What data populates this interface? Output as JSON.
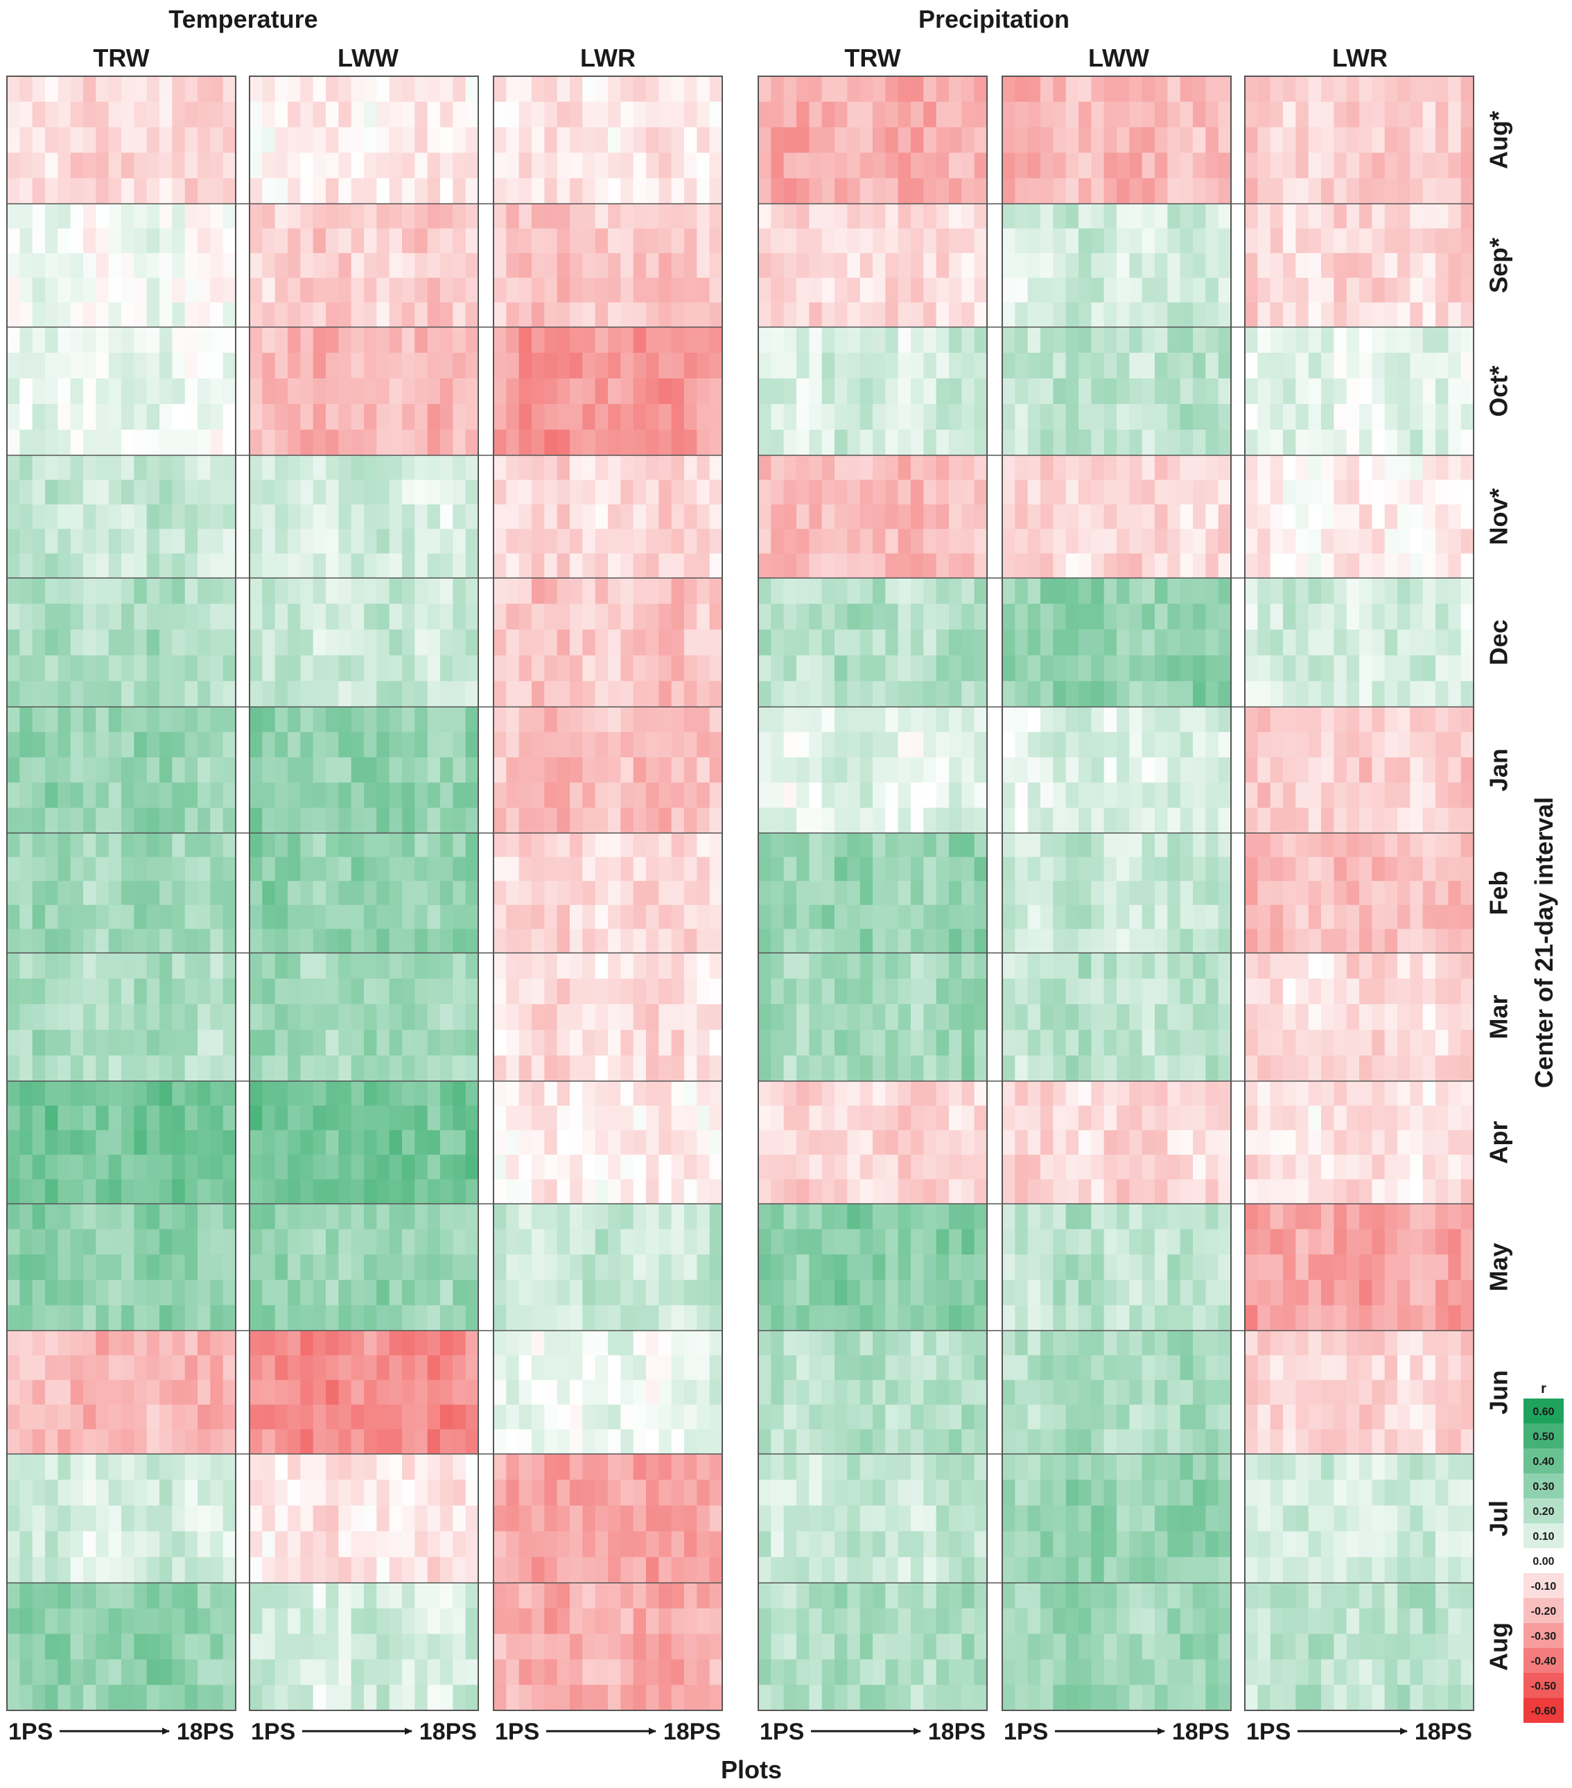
{
  "chart_data": {
    "type": "heatmap",
    "groups": [
      {
        "title": "Temperature",
        "variables": [
          "TRW",
          "LWW",
          "LWR"
        ]
      },
      {
        "title": "Precipitation",
        "variables": [
          "TRW",
          "LWW",
          "LWR"
        ]
      }
    ],
    "x_start_label": "1PS",
    "x_end_label": "18PS",
    "xlabel": "Plots",
    "ylabel": "Center of 21-day interval",
    "months": [
      "Aug*",
      "Sep*",
      "Oct*",
      "Nov*",
      "Dec",
      "Jan",
      "Feb",
      "Mar",
      "Apr",
      "May",
      "Jun",
      "Jul",
      "Aug"
    ],
    "plots_per_panel": 18,
    "colorbar": {
      "title": "r",
      "ticks": [
        "0.60",
        "0.50",
        "0.40",
        "0.30",
        "0.20",
        "0.10",
        "0.00",
        "-0.10",
        "-0.20",
        "-0.30",
        "-0.40",
        "-0.50",
        "-0.60"
      ],
      "range": [
        -0.6,
        0.6
      ],
      "positive_color": "#1fa35c",
      "negative_color": "#ee3b3b"
    },
    "panel_month_mean_r": {
      "Temperature TRW": [
        -0.12,
        0.02,
        0.05,
        0.15,
        0.22,
        0.28,
        0.25,
        0.22,
        0.38,
        0.3,
        -0.22,
        0.12,
        0.3
      ],
      "Temperature LWW": [
        -0.05,
        -0.15,
        -0.22,
        0.12,
        0.15,
        0.3,
        0.3,
        0.25,
        0.38,
        0.28,
        -0.35,
        -0.08,
        0.12
      ],
      "Temperature LWR": [
        -0.08,
        -0.18,
        -0.32,
        -0.12,
        -0.18,
        -0.2,
        -0.12,
        -0.1,
        -0.05,
        0.15,
        0.05,
        -0.28,
        -0.25
      ],
      "Precipitation TRW": [
        -0.25,
        -0.12,
        0.12,
        -0.2,
        0.2,
        0.08,
        0.28,
        0.25,
        -0.12,
        0.32,
        0.2,
        0.15,
        0.22
      ],
      "Precipitation LWW": [
        -0.22,
        0.12,
        0.18,
        -0.12,
        0.3,
        0.1,
        0.15,
        0.18,
        -0.12,
        0.18,
        0.22,
        0.28,
        0.25
      ],
      "Precipitation LWR": [
        -0.15,
        -0.12,
        0.08,
        -0.05,
        0.12,
        -0.15,
        -0.2,
        -0.1,
        -0.08,
        -0.28,
        -0.12,
        0.12,
        0.18
      ]
    }
  }
}
